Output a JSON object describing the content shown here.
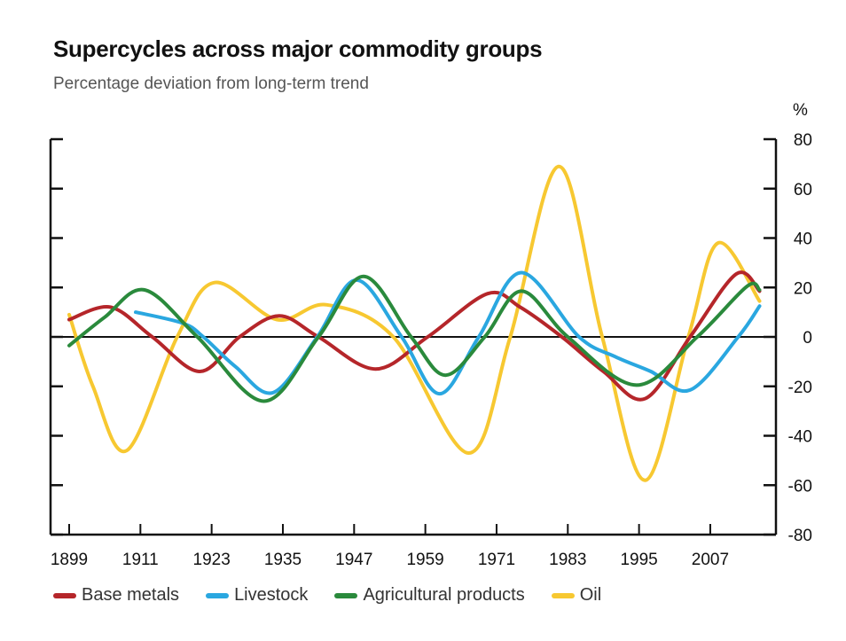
{
  "chart_data": {
    "type": "line",
    "title": "Supercycles across major commodity groups",
    "subtitle": "Percentage deviation from long-term trend",
    "xlabel": "",
    "ylabel": "%",
    "xlim": [
      1899,
      2018
    ],
    "ylim": [
      -80,
      80
    ],
    "x_ticks": [
      1899,
      1911,
      1923,
      1935,
      1947,
      1959,
      1971,
      1983,
      1995,
      2007
    ],
    "y_ticks": [
      80,
      60,
      40,
      20,
      0,
      -20,
      -40,
      -60,
      -80
    ],
    "y_axis_side": "right",
    "zero_line": true,
    "grid": false,
    "legend_position": "bottom",
    "series": [
      {
        "name": "Base metals",
        "color": "#b5262a",
        "points": [
          [
            1899,
            7
          ],
          [
            1906,
            12
          ],
          [
            1913,
            0
          ],
          [
            1921,
            -14
          ],
          [
            1927.7,
            0
          ],
          [
            1934.4,
            8.5
          ],
          [
            1941,
            0
          ],
          [
            1950.6,
            -13
          ],
          [
            1959.4,
            0
          ],
          [
            1969.5,
            17.5
          ],
          [
            1975,
            12
          ],
          [
            1982,
            0
          ],
          [
            1989,
            -14
          ],
          [
            1996,
            -25
          ],
          [
            2003.6,
            0
          ],
          [
            2011.4,
            25.5
          ],
          [
            2015.3,
            18.5
          ]
        ]
      },
      {
        "name": "Livestock",
        "color": "#2aa7e0",
        "points": [
          [
            1910.2,
            10
          ],
          [
            1918.2,
            5.5
          ],
          [
            1921.6,
            0
          ],
          [
            1927,
            -12
          ],
          [
            1933.4,
            -22.5
          ],
          [
            1940.8,
            0
          ],
          [
            1947.4,
            23
          ],
          [
            1955,
            0
          ],
          [
            1961.4,
            -23
          ],
          [
            1968,
            0
          ],
          [
            1975.2,
            26
          ],
          [
            1984.9,
            0
          ],
          [
            1991,
            -8
          ],
          [
            1997,
            -14
          ],
          [
            2003.6,
            -21.5
          ],
          [
            2011.7,
            0
          ],
          [
            2015.3,
            12.5
          ]
        ]
      },
      {
        "name": "Agricultural products",
        "color": "#2a8a3c",
        "points": [
          [
            1899,
            -3.5
          ],
          [
            1905,
            8
          ],
          [
            1911.7,
            19
          ],
          [
            1920.6,
            0
          ],
          [
            1931.8,
            -26
          ],
          [
            1941,
            0
          ],
          [
            1948.6,
            24.5
          ],
          [
            1956.6,
            0
          ],
          [
            1962.4,
            -15.5
          ],
          [
            1969,
            0
          ],
          [
            1975.2,
            18.5
          ],
          [
            1983,
            0
          ],
          [
            1994.6,
            -19.5
          ],
          [
            2004.8,
            0
          ],
          [
            2013.2,
            20.5
          ],
          [
            2015.3,
            19
          ]
        ]
      },
      {
        "name": "Oil",
        "color": "#f7c831",
        "points": [
          [
            1899,
            9
          ],
          [
            1903,
            -20
          ],
          [
            1908.7,
            -46
          ],
          [
            1917.2,
            0
          ],
          [
            1923.5,
            22
          ],
          [
            1934,
            7
          ],
          [
            1942.4,
            13
          ],
          [
            1953.6,
            0
          ],
          [
            1966.3,
            -47
          ],
          [
            1973.3,
            0
          ],
          [
            1981.5,
            69
          ],
          [
            1988.8,
            0
          ],
          [
            1996,
            -58
          ],
          [
            2003.3,
            0
          ],
          [
            2008.3,
            38
          ],
          [
            2015.3,
            14.5
          ]
        ]
      }
    ]
  }
}
